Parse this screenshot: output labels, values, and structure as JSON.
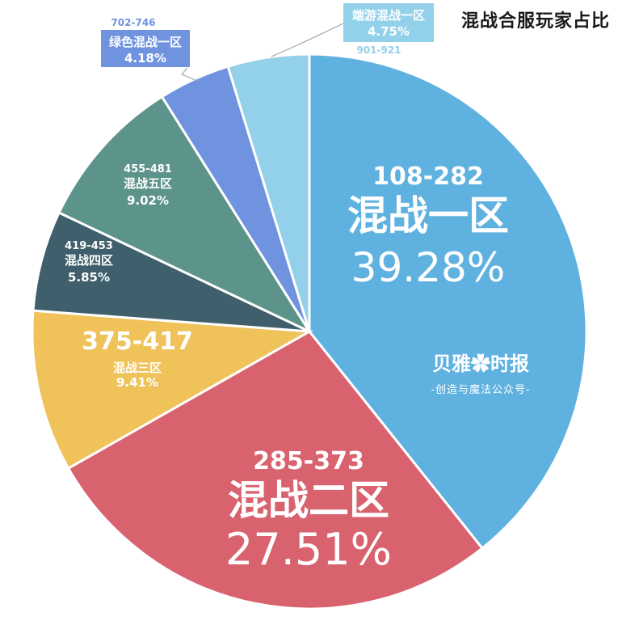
{
  "chart_data": {
    "type": "pie",
    "title": "混战合服玩家占比",
    "slices": [
      {
        "range": "108-282",
        "name": "混战一区",
        "percent_label": "39.28%",
        "value": 39.28,
        "color": "#5fb1e0"
      },
      {
        "range": "285-373",
        "name": "混战二区",
        "percent_label": "27.51%",
        "value": 27.51,
        "color": "#d9626f"
      },
      {
        "range": "375-417",
        "name": "混战三区",
        "percent_label": "9.41%",
        "value": 9.41,
        "color": "#efc35a"
      },
      {
        "range": "419-453",
        "name": "混战四区",
        "percent_label": "5.85%",
        "value": 5.85,
        "color": "#3e5f6b"
      },
      {
        "range": "455-481",
        "name": "混战五区",
        "percent_label": "9.02%",
        "value": 9.02,
        "color": "#5c938a"
      },
      {
        "range": "702-746",
        "name": "绿色混战一区",
        "percent_label": "4.18%",
        "value": 4.18,
        "color": "#6f93de"
      },
      {
        "range": "901-921",
        "name": "端游混战一区",
        "percent_label": "4.75%",
        "value": 4.75,
        "color": "#93d0ea"
      }
    ]
  },
  "watermark": {
    "main": "贝雅✿时报",
    "sub": "-创造与魔法公众号-"
  }
}
